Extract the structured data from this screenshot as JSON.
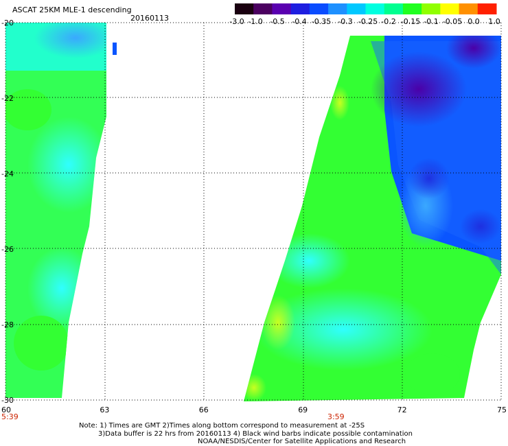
{
  "header": {
    "title": "ASCAT 25KM MLE-1 descending",
    "date": "20160113"
  },
  "colorbar": {
    "ticks": [
      "-3.0",
      "-1.0",
      "-0.5",
      "-0.4",
      "-0.35",
      "-0.3",
      "-0.25",
      "-0.2",
      "-0.15",
      "-0.1",
      "-0.05",
      "0.0",
      "1.0"
    ],
    "colors": [
      "#1a0010",
      "#4b0060",
      "#5a00b0",
      "#1e1ee0",
      "#0a4cff",
      "#1e90ff",
      "#00c8ff",
      "#00ffe0",
      "#00ff90",
      "#20ff20",
      "#90ff00",
      "#ffff00",
      "#ff9000",
      "#ff2000"
    ]
  },
  "map": {
    "lon_range": [
      60,
      75
    ],
    "lat_range": [
      -30,
      -20
    ],
    "lon_ticks": [
      "60",
      "63",
      "66",
      "69",
      "72",
      "75"
    ],
    "lat_ticks": [
      "-20",
      "-22",
      "-24",
      "-26",
      "-28",
      "-30"
    ],
    "pass_times": [
      {
        "label": "5:39",
        "lon": 60
      },
      {
        "label": "3:59",
        "lon": 70
      }
    ],
    "swath_colors": {
      "green": "#33ff33",
      "aqua": "#22ffcc",
      "cyan": "#22ffff",
      "lime": "#aaff22",
      "blue": "#0a55ff",
      "deepblue": "#1a22e0",
      "purple": "#4b00aa",
      "sky": "#44aaff"
    }
  },
  "notes": {
    "line1": "Note: 1) Times are GMT 2)Times along bottom correspond to measurement at -25S",
    "line2": "3)Data buffer is 22 hrs from 20160113 4) Black wind barbs indicate possible contamination",
    "line3": "NOAA/NESDIS/Center for Satellite Applications and Research"
  }
}
